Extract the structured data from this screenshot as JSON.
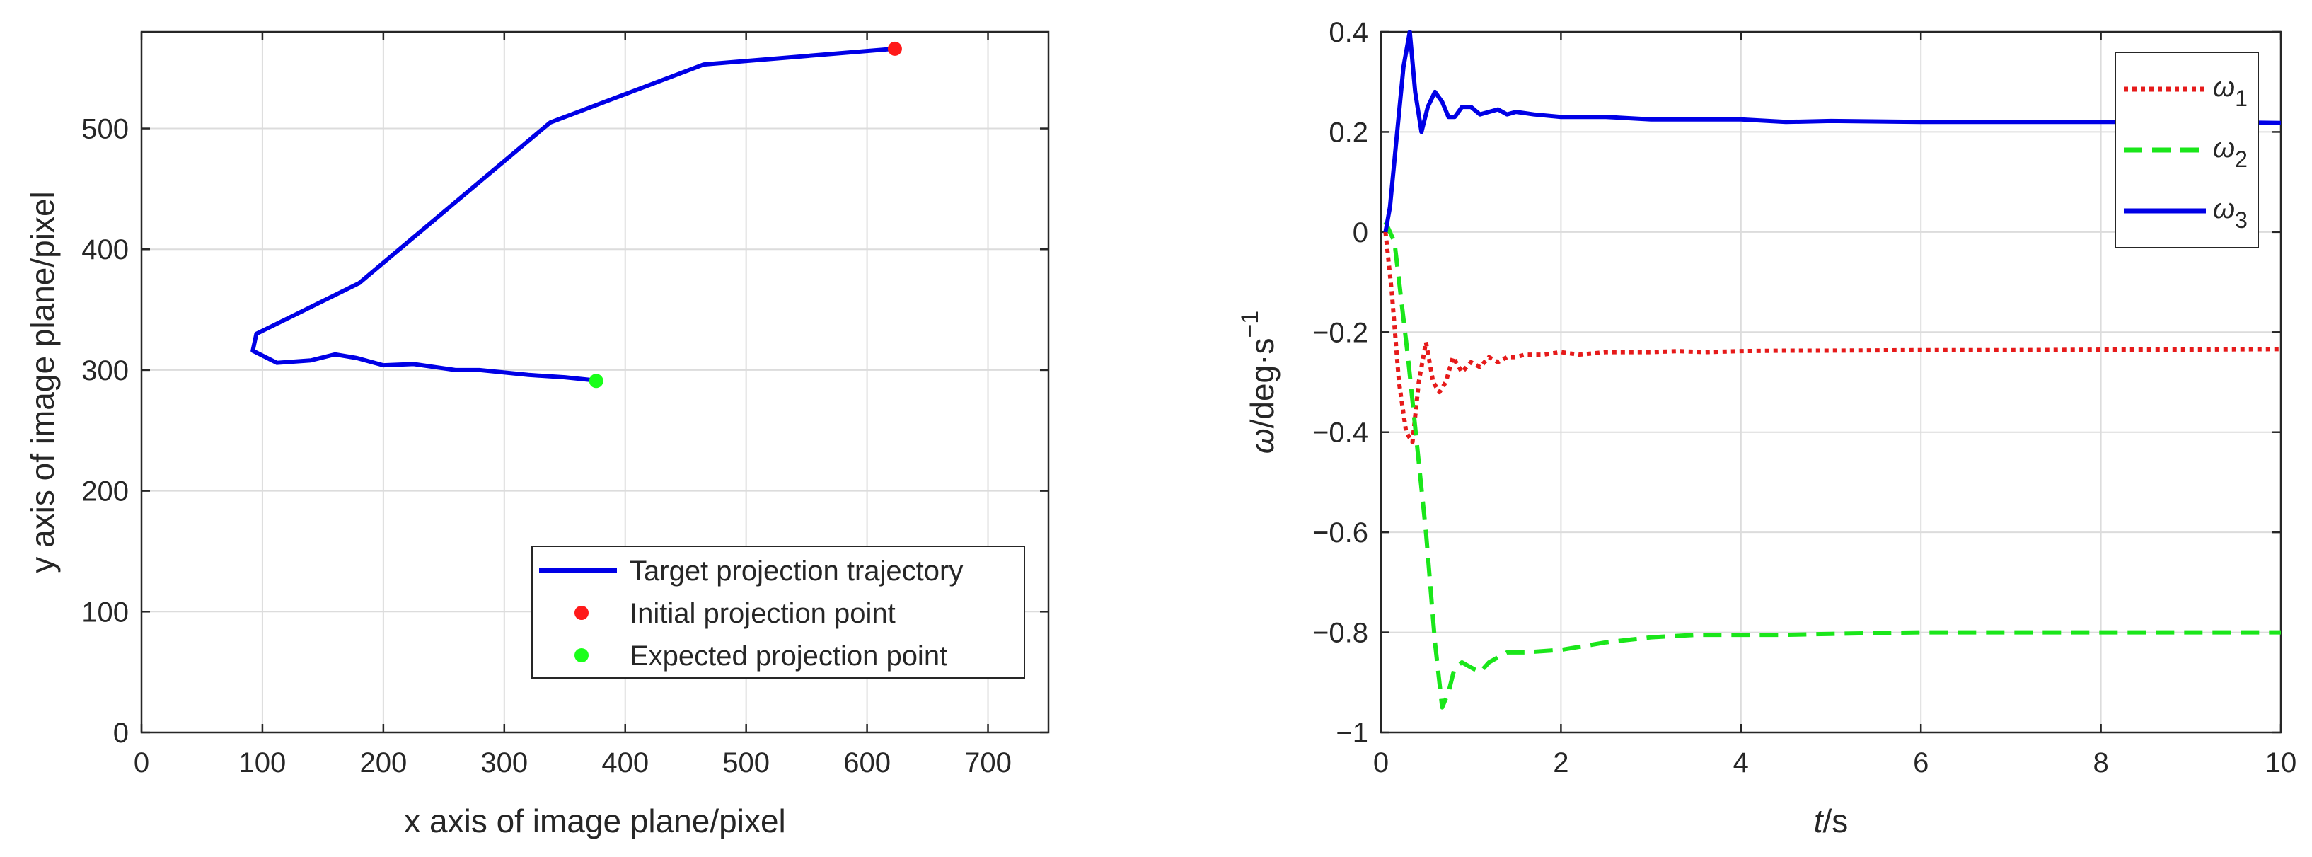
{
  "chart_data": [
    {
      "type": "line",
      "xlabel": "x axis of image plane/pixel",
      "ylabel": "y axis of image plane/pixel",
      "xlim": [
        0,
        750
      ],
      "ylim": [
        0,
        580
      ],
      "xticks": [
        0,
        100,
        200,
        300,
        400,
        500,
        600,
        700
      ],
      "yticks": [
        0,
        100,
        200,
        300,
        400,
        500
      ],
      "xtick_labels": [
        "0",
        "100",
        "200",
        "300",
        "400",
        "500",
        "600",
        "700"
      ],
      "ytick_labels": [
        "0",
        "100",
        "200",
        "300",
        "400",
        "500"
      ],
      "grid": true,
      "legend_position": "bottom-right",
      "colors": {
        "trajectory": "#0000e6",
        "initial": "#ff1a1a",
        "expected": "#1aff1a"
      },
      "series": [
        {
          "name": "Target projection trajectory",
          "x": [
            623,
            465,
            338,
            180,
            95,
            92,
            112,
            140,
            160,
            178,
            200,
            225,
            260,
            280,
            320,
            350,
            370,
            376
          ],
          "y": [
            566,
            553,
            505,
            372,
            330,
            316,
            306,
            308,
            313,
            310,
            304,
            305,
            300,
            300,
            296,
            294,
            292,
            291
          ]
        },
        {
          "name": "Initial projection point",
          "x": [
            623
          ],
          "y": [
            566
          ]
        },
        {
          "name": "Expected projection point",
          "x": [
            376
          ],
          "y": [
            291
          ]
        }
      ]
    },
    {
      "type": "line",
      "xlabel_italic": "t",
      "xlabel_rest": "/s",
      "ylabel_omega": "ω",
      "ylabel_unit": "/deg·s",
      "ylabel_exp": "−1",
      "xlim": [
        0,
        10
      ],
      "ylim": [
        -1,
        0.4
      ],
      "xticks": [
        0,
        2,
        4,
        6,
        8,
        10
      ],
      "yticks": [
        -1,
        -0.8,
        -0.6,
        -0.4,
        -0.2,
        0,
        0.2,
        0.4
      ],
      "xtick_labels": [
        "0",
        "2",
        "4",
        "6",
        "8",
        "10"
      ],
      "ytick_labels": [
        "−1",
        "−0.8",
        "−0.6",
        "−0.4",
        "−0.2",
        "0",
        "0.2",
        "0.4"
      ],
      "grid": true,
      "legend_position": "top-right",
      "colors": {
        "w1": "#e61a1a",
        "w2": "#1ae61a",
        "w3": "#0000e6"
      },
      "series": [
        {
          "name": "ω",
          "sub": "1",
          "x": [
            0.05,
            0.12,
            0.2,
            0.28,
            0.35,
            0.42,
            0.5,
            0.58,
            0.65,
            0.72,
            0.8,
            0.9,
            1.0,
            1.1,
            1.2,
            1.3,
            1.4,
            1.5,
            1.6,
            1.8,
            2.0,
            2.2,
            2.5,
            2.8,
            3.0,
            3.3,
            3.6,
            4.0,
            4.5,
            5.0,
            6.0,
            7.0,
            8.0,
            9.0,
            10.0
          ],
          "y": [
            0.0,
            -0.12,
            -0.3,
            -0.4,
            -0.42,
            -0.3,
            -0.22,
            -0.3,
            -0.32,
            -0.3,
            -0.25,
            -0.28,
            -0.26,
            -0.27,
            -0.25,
            -0.26,
            -0.25,
            -0.25,
            -0.245,
            -0.245,
            -0.24,
            -0.245,
            -0.24,
            -0.24,
            -0.24,
            -0.238,
            -0.24,
            -0.238,
            -0.237,
            -0.237,
            -0.236,
            -0.236,
            -0.235,
            -0.235,
            -0.234
          ]
        },
        {
          "name": "ω",
          "sub": "2",
          "x": [
            0.05,
            0.15,
            0.3,
            0.5,
            0.6,
            0.68,
            0.75,
            0.82,
            0.9,
            1.0,
            1.1,
            1.2,
            1.3,
            1.4,
            1.6,
            2.0,
            2.5,
            3.0,
            3.5,
            4.0,
            4.5,
            5.0,
            6.0,
            7.0,
            8.0,
            9.0,
            10.0
          ],
          "y": [
            0.02,
            -0.02,
            -0.25,
            -0.6,
            -0.82,
            -0.95,
            -0.92,
            -0.87,
            -0.86,
            -0.87,
            -0.88,
            -0.86,
            -0.85,
            -0.84,
            -0.84,
            -0.835,
            -0.82,
            -0.81,
            -0.805,
            -0.805,
            -0.805,
            -0.803,
            -0.8,
            -0.8,
            -0.8,
            -0.8,
            -0.8
          ]
        },
        {
          "name": "ω",
          "sub": "3",
          "x": [
            0.05,
            0.1,
            0.18,
            0.25,
            0.32,
            0.38,
            0.45,
            0.52,
            0.6,
            0.68,
            0.75,
            0.82,
            0.9,
            1.0,
            1.1,
            1.2,
            1.3,
            1.4,
            1.5,
            1.7,
            2.0,
            2.5,
            3.0,
            3.5,
            4.0,
            4.5,
            5.0,
            6.0,
            7.0,
            8.0,
            9.0,
            10.0
          ],
          "y": [
            0.0,
            0.05,
            0.2,
            0.33,
            0.4,
            0.28,
            0.2,
            0.25,
            0.28,
            0.26,
            0.23,
            0.23,
            0.25,
            0.25,
            0.235,
            0.24,
            0.245,
            0.235,
            0.24,
            0.235,
            0.23,
            0.23,
            0.225,
            0.225,
            0.225,
            0.22,
            0.222,
            0.22,
            0.22,
            0.22,
            0.22,
            0.218
          ]
        }
      ]
    }
  ]
}
